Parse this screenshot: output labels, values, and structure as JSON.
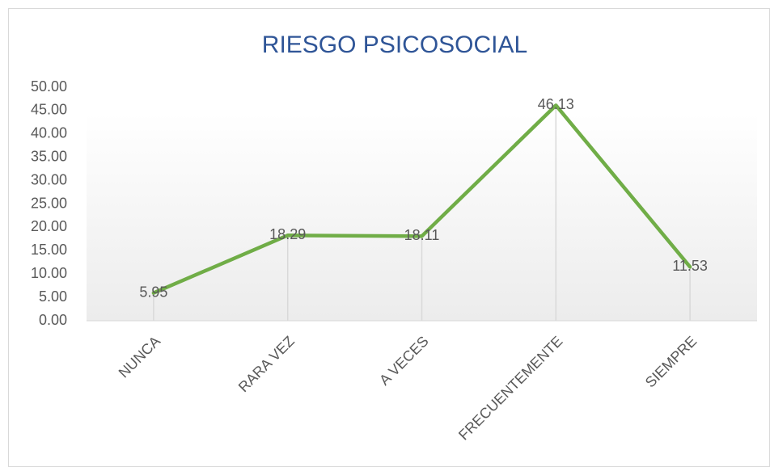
{
  "chart_data": {
    "type": "line",
    "title": "RIESGO  PSICOSOCIAL",
    "categories": [
      "NUNCA",
      "RARA VEZ",
      "A VECES",
      "FRECUENTEMENTE",
      "SIEMPRE"
    ],
    "values": [
      5.95,
      18.29,
      18.11,
      46.13,
      11.53
    ],
    "color": "#70ad47",
    "ylim": [
      0,
      50
    ],
    "yticks": [
      {
        "value": 0,
        "label": "0.00"
      },
      {
        "value": 5,
        "label": "5.00"
      },
      {
        "value": 10,
        "label": "10.00"
      },
      {
        "value": 15,
        "label": "15.00"
      },
      {
        "value": 20,
        "label": "20.00"
      },
      {
        "value": 25,
        "label": "25.00"
      },
      {
        "value": 30,
        "label": "30.00"
      },
      {
        "value": 35,
        "label": "35.00"
      },
      {
        "value": 40,
        "label": "40.00"
      },
      {
        "value": 45,
        "label": "45.00"
      },
      {
        "value": 50,
        "label": "50.00"
      }
    ],
    "grid": false,
    "drop_lines": true
  }
}
